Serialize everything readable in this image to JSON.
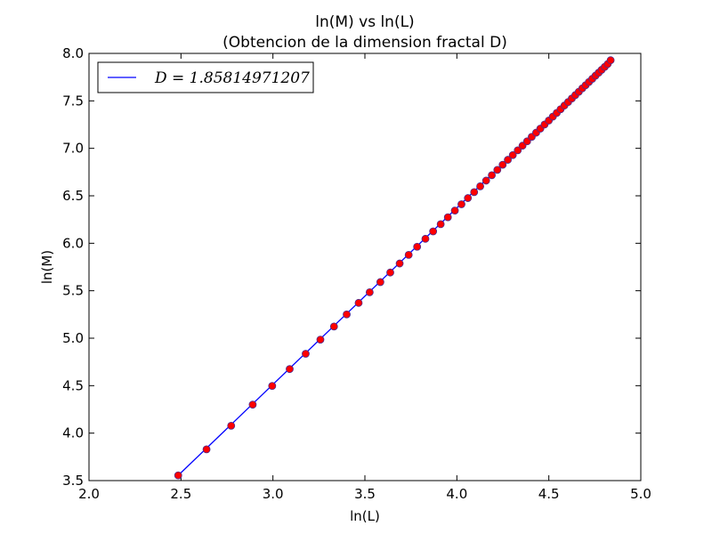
{
  "chart_data": {
    "type": "line",
    "title": "ln(M) vs ln(L)",
    "subtitle": "(Obtencion de la dimension fractal D)",
    "xlabel": "ln(L)",
    "ylabel": "ln(M)",
    "xlim": [
      2.0,
      5.0
    ],
    "ylim": [
      3.5,
      8.0
    ],
    "xticks": [
      "2.0",
      "2.5",
      "3.0",
      "3.5",
      "4.0",
      "4.5",
      "5.0"
    ],
    "yticks": [
      "3.5",
      "4.0",
      "4.5",
      "5.0",
      "5.5",
      "6.0",
      "6.5",
      "7.0",
      "7.5",
      "8.0"
    ],
    "grid": false,
    "legend_position": "top-left",
    "fit_line": {
      "label": "D = 1.85814971207",
      "color": "#0000ff",
      "slope": 1.85814971207,
      "x": [
        2.485,
        4.836
      ],
      "y": [
        3.555,
        7.928
      ]
    },
    "points": {
      "face_color": "#ff0000",
      "edge_color": "#4b2c8f",
      "x": [
        2.485,
        2.639,
        2.773,
        2.89,
        2.996,
        3.091,
        3.178,
        3.258,
        3.332,
        3.401,
        3.466,
        3.526,
        3.584,
        3.638,
        3.689,
        3.738,
        3.784,
        3.829,
        3.871,
        3.912,
        3.951,
        3.989,
        4.025,
        4.06,
        4.094,
        4.127,
        4.159,
        4.19,
        4.22,
        4.249,
        4.277,
        4.304,
        4.331,
        4.357,
        4.382,
        4.407,
        4.431,
        4.454,
        4.477,
        4.5,
        4.522,
        4.543,
        4.564,
        4.585,
        4.605,
        4.625,
        4.644,
        4.663,
        4.682,
        4.7,
        4.718,
        4.736,
        4.754,
        4.771,
        4.787,
        4.804,
        4.82,
        4.836
      ],
      "y": [
        3.555,
        3.829,
        4.078,
        4.3,
        4.497,
        4.675,
        4.836,
        4.985,
        5.123,
        5.251,
        5.372,
        5.484,
        5.591,
        5.692,
        5.787,
        5.878,
        5.963,
        6.047,
        6.125,
        6.201,
        6.274,
        6.344,
        6.411,
        6.476,
        6.539,
        6.6,
        6.66,
        6.717,
        6.773,
        6.827,
        6.879,
        6.929,
        6.979,
        7.028,
        7.074,
        7.121,
        7.165,
        7.208,
        7.251,
        7.293,
        7.334,
        7.373,
        7.412,
        7.451,
        7.488,
        7.525,
        7.561,
        7.596,
        7.632,
        7.665,
        7.699,
        7.732,
        7.766,
        7.797,
        7.827,
        7.858,
        7.888,
        7.928
      ]
    }
  }
}
